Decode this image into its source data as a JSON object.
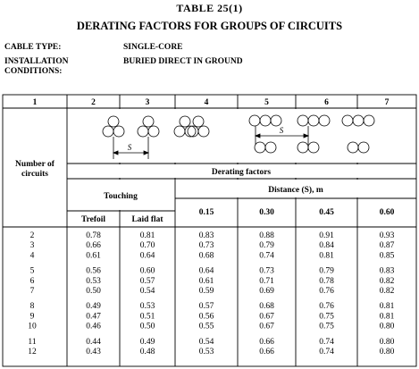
{
  "table": {
    "number": "TABLE   25(1)",
    "title": "DERATING FACTORS FOR GROUPS OF CIRCUITS",
    "cable_type_label": "CABLE TYPE:",
    "cable_type_value": "SINGLE-CORE",
    "installation_label": "INSTALLATION CONDITIONS:",
    "installation_value": "BURIED DIRECT IN GROUND",
    "column_numbers": [
      "1",
      "2",
      "3",
      "4",
      "5",
      "6",
      "7"
    ],
    "number_of_circuits_label": "Number of circuits",
    "derating_factors_label": "Derating factors",
    "touching_label": "Touching",
    "distance_label": "Distance (S), m",
    "spacing_label": "S",
    "sub_headers": [
      "Trefoil",
      "Laid flat",
      "0.15",
      "0.30",
      "0.45",
      "0.60"
    ],
    "groups": [
      {
        "rows": [
          {
            "n": "2",
            "v": [
              "0.78",
              "0.81",
              "0.83",
              "0.88",
              "0.91",
              "0.93"
            ]
          },
          {
            "n": "3",
            "v": [
              "0.66",
              "0.70",
              "0.73",
              "0.79",
              "0.84",
              "0.87"
            ]
          },
          {
            "n": "4",
            "v": [
              "0.61",
              "0.64",
              "0.68",
              "0.74",
              "0.81",
              "0.85"
            ]
          }
        ]
      },
      {
        "rows": [
          {
            "n": "5",
            "v": [
              "0.56",
              "0.60",
              "0.64",
              "0.73",
              "0.79",
              "0.83"
            ]
          },
          {
            "n": "6",
            "v": [
              "0.53",
              "0.57",
              "0.61",
              "0.71",
              "0.78",
              "0.82"
            ]
          },
          {
            "n": "7",
            "v": [
              "0.50",
              "0.54",
              "0.59",
              "0.69",
              "0.76",
              "0.82"
            ]
          }
        ]
      },
      {
        "rows": [
          {
            "n": "8",
            "v": [
              "0.49",
              "0.53",
              "0.57",
              "0.68",
              "0.76",
              "0.81"
            ]
          },
          {
            "n": "9",
            "v": [
              "0.47",
              "0.51",
              "0.56",
              "0.67",
              "0.75",
              "0.81"
            ]
          },
          {
            "n": "10",
            "v": [
              "0.46",
              "0.50",
              "0.55",
              "0.67",
              "0.75",
              "0.80"
            ]
          }
        ]
      },
      {
        "rows": [
          {
            "n": "11",
            "v": [
              "0.44",
              "0.49",
              "0.54",
              "0.66",
              "0.74",
              "0.80"
            ]
          },
          {
            "n": "12",
            "v": [
              "0.43",
              "0.48",
              "0.53",
              "0.66",
              "0.74",
              "0.80"
            ]
          }
        ]
      }
    ]
  }
}
